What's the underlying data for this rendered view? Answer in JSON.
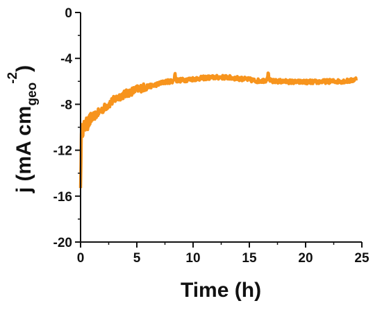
{
  "chart_data": {
    "type": "line",
    "title": "",
    "xlabel": "Time (h)",
    "ylabel": {
      "prefix": "j (mA cm",
      "subscript": "geo",
      "superscript": "-2",
      "suffix": ")"
    },
    "xlim": [
      0,
      25
    ],
    "ylim": [
      -20,
      0
    ],
    "xticks": [
      0,
      5,
      10,
      15,
      20,
      25
    ],
    "yticks": [
      0,
      -4,
      -8,
      -12,
      -16,
      -20
    ],
    "grid": false,
    "legend": "none",
    "series": [
      {
        "color": "#F7941D",
        "x": [
          0,
          0.05,
          0.1,
          0.2,
          0.3,
          0.5,
          0.75,
          1,
          1.5,
          2,
          2.5,
          3,
          3.5,
          4,
          4.5,
          5,
          5.5,
          6,
          6.5,
          7,
          7.5,
          8,
          8.3,
          8.4,
          8.5,
          9,
          10,
          11,
          12,
          13,
          14,
          15,
          15.5,
          16,
          16.5,
          16.7,
          16.8,
          17,
          17.5,
          18,
          19,
          20,
          21,
          22,
          23,
          24,
          24.5
        ],
        "y": [
          -15.3,
          -11.5,
          -10.3,
          -10.2,
          -10.0,
          -9.8,
          -9.5,
          -9.2,
          -8.8,
          -8.4,
          -8.0,
          -7.6,
          -7.3,
          -7.1,
          -6.9,
          -6.7,
          -6.55,
          -6.45,
          -6.35,
          -6.2,
          -6.05,
          -6.0,
          -5.95,
          -5.3,
          -5.9,
          -5.9,
          -5.8,
          -5.7,
          -5.65,
          -5.65,
          -5.75,
          -5.85,
          -5.95,
          -5.95,
          -5.9,
          -5.3,
          -5.9,
          -6.0,
          -6.0,
          -6.0,
          -6.05,
          -6.05,
          -6.05,
          -6.0,
          -6.0,
          -5.95,
          -5.8
        ]
      }
    ]
  }
}
